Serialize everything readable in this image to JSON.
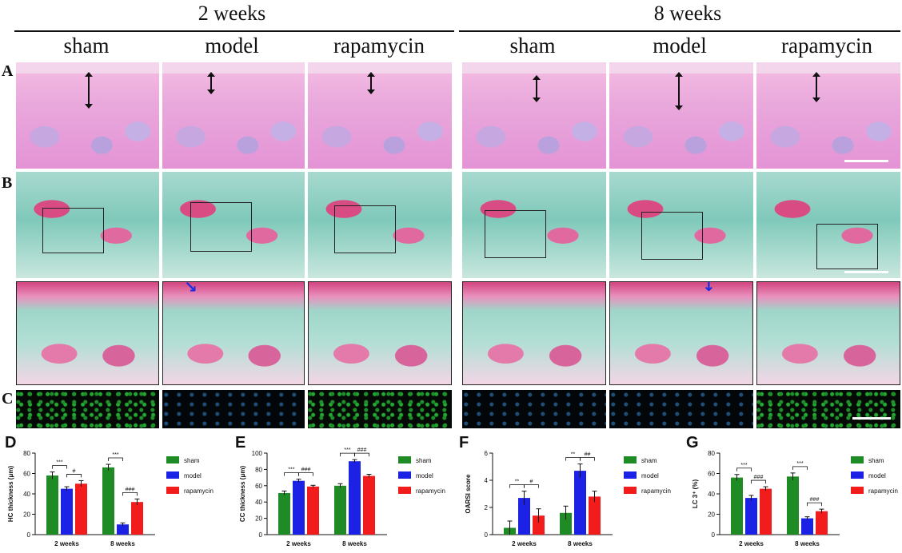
{
  "headers": {
    "group1": "2 weeks",
    "group2": "8 weeks"
  },
  "columns": [
    "sham",
    "model",
    "rapamycin",
    "sham",
    "model",
    "rapamycin"
  ],
  "row_labels": [
    "A",
    "B",
    "C"
  ],
  "colors": {
    "sham": "#1f8b24",
    "model": "#1b22e6",
    "rapamycin": "#f21c1c"
  },
  "chart_data": [
    {
      "panel": "D",
      "type": "bar",
      "categories": [
        "2 weeks",
        "8 weeks"
      ],
      "ylabel": "HC thickness (μm)",
      "ylim": [
        0,
        80
      ],
      "yticks": [
        0,
        20,
        40,
        60,
        80
      ],
      "series": [
        {
          "name": "sham",
          "values": [
            58,
            66
          ],
          "err": [
            3.5,
            3
          ]
        },
        {
          "name": "model",
          "values": [
            45,
            10
          ],
          "err": [
            2,
            1.5
          ]
        },
        {
          "name": "rapamycin",
          "values": [
            50,
            32
          ],
          "err": [
            3,
            3
          ]
        }
      ],
      "sig": [
        [
          "***",
          "#"
        ],
        [
          "***",
          "###"
        ]
      ]
    },
    {
      "panel": "E",
      "type": "bar",
      "categories": [
        "2 weeks",
        "8 weeks"
      ],
      "ylabel": "CC thickness (μm)",
      "ylim": [
        0,
        100
      ],
      "yticks": [
        0,
        20,
        40,
        60,
        80,
        100
      ],
      "series": [
        {
          "name": "sham",
          "values": [
            51,
            60
          ],
          "err": [
            2.5,
            2.5
          ]
        },
        {
          "name": "model",
          "values": [
            66,
            90
          ],
          "err": [
            2,
            2
          ]
        },
        {
          "name": "rapamycin",
          "values": [
            59,
            72
          ],
          "err": [
            1.5,
            2
          ]
        }
      ],
      "sig": [
        [
          "***",
          "###"
        ],
        [
          "***",
          "###"
        ]
      ]
    },
    {
      "panel": "F",
      "type": "bar",
      "categories": [
        "2 weeks",
        "8 weeks"
      ],
      "ylabel": "OARSI score",
      "ylim": [
        0,
        6
      ],
      "yticks": [
        0,
        2,
        4,
        6
      ],
      "series": [
        {
          "name": "sham",
          "values": [
            0.5,
            1.6
          ],
          "err": [
            0.5,
            0.5
          ]
        },
        {
          "name": "model",
          "values": [
            2.7,
            4.7
          ],
          "err": [
            0.5,
            0.5
          ]
        },
        {
          "name": "rapamycin",
          "values": [
            1.4,
            2.8
          ],
          "err": [
            0.5,
            0.4
          ]
        }
      ],
      "sig": [
        [
          "**",
          "#"
        ],
        [
          "**",
          "##"
        ]
      ]
    },
    {
      "panel": "G",
      "type": "bar",
      "categories": [
        "2 weeks",
        "8 weeks"
      ],
      "ylabel": "LC 3⁺ (%)",
      "ylim": [
        0,
        80
      ],
      "yticks": [
        0,
        20,
        40,
        60,
        80
      ],
      "series": [
        {
          "name": "sham",
          "values": [
            56,
            57
          ],
          "err": [
            3,
            3.5
          ]
        },
        {
          "name": "model",
          "values": [
            36,
            16
          ],
          "err": [
            2.5,
            1.5
          ]
        },
        {
          "name": "rapamycin",
          "values": [
            45,
            23
          ],
          "err": [
            2,
            2
          ]
        }
      ],
      "sig": [
        [
          "***",
          "###"
        ],
        [
          "***",
          "###"
        ]
      ]
    }
  ]
}
